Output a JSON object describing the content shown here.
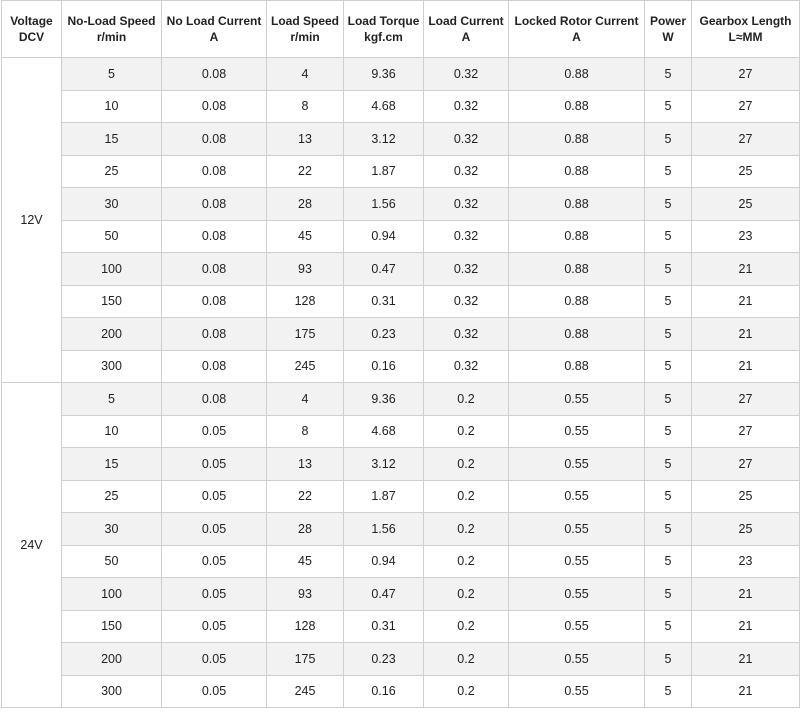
{
  "header": [
    [
      "Voltage",
      "DCV"
    ],
    [
      "No-Load Speed",
      "r/min"
    ],
    [
      "No Load Current",
      "A"
    ],
    [
      "Load Speed",
      "r/min"
    ],
    [
      "Load Torque",
      "kgf.cm"
    ],
    [
      "Load Current",
      "A"
    ],
    [
      "Locked Rotor Current",
      "A"
    ],
    [
      "Power",
      "W"
    ],
    [
      "Gearbox Length",
      "L≈MM"
    ]
  ],
  "groups": [
    {
      "voltage": "12V",
      "rows": [
        [
          5,
          0.08,
          4,
          9.36,
          0.32,
          0.88,
          5,
          27
        ],
        [
          10,
          0.08,
          8,
          4.68,
          0.32,
          0.88,
          5,
          27
        ],
        [
          15,
          0.08,
          13,
          3.12,
          0.32,
          0.88,
          5,
          27
        ],
        [
          25,
          0.08,
          22,
          1.87,
          0.32,
          0.88,
          5,
          25
        ],
        [
          30,
          0.08,
          28,
          1.56,
          0.32,
          0.88,
          5,
          25
        ],
        [
          50,
          0.08,
          45,
          0.94,
          0.32,
          0.88,
          5,
          23
        ],
        [
          100,
          0.08,
          93,
          0.47,
          0.32,
          0.88,
          5,
          21
        ],
        [
          150,
          0.08,
          128,
          0.31,
          0.32,
          0.88,
          5,
          21
        ],
        [
          200,
          0.08,
          175,
          0.23,
          0.32,
          0.88,
          5,
          21
        ],
        [
          300,
          0.08,
          245,
          0.16,
          0.32,
          0.88,
          5,
          21
        ]
      ]
    },
    {
      "voltage": "24V",
      "rows": [
        [
          5,
          0.08,
          4,
          9.36,
          0.2,
          0.55,
          5,
          27
        ],
        [
          10,
          0.05,
          8,
          4.68,
          0.2,
          0.55,
          5,
          27
        ],
        [
          15,
          0.05,
          13,
          3.12,
          0.2,
          0.55,
          5,
          27
        ],
        [
          25,
          0.05,
          22,
          1.87,
          0.2,
          0.55,
          5,
          25
        ],
        [
          30,
          0.05,
          28,
          1.56,
          0.2,
          0.55,
          5,
          25
        ],
        [
          50,
          0.05,
          45,
          0.94,
          0.2,
          0.55,
          5,
          23
        ],
        [
          100,
          0.05,
          93,
          0.47,
          0.2,
          0.55,
          5,
          21
        ],
        [
          150,
          0.05,
          128,
          0.31,
          0.2,
          0.55,
          5,
          21
        ],
        [
          200,
          0.05,
          175,
          0.23,
          0.2,
          0.55,
          5,
          21
        ],
        [
          300,
          0.05,
          245,
          0.16,
          0.2,
          0.55,
          5,
          21
        ]
      ]
    }
  ]
}
